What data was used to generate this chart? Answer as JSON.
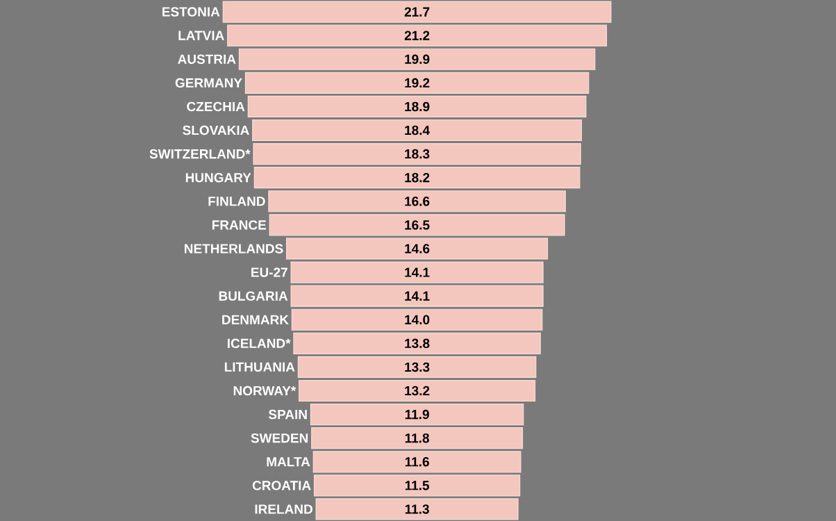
{
  "chart_data": {
    "type": "other",
    "categories": [
      "ESTONIA",
      "LATVIA",
      "AUSTRIA",
      "GERMANY",
      "CZECHIA",
      "SLOVAKIA",
      "SWITZERLAND*",
      "HUNGARY",
      "FINLAND",
      "FRANCE",
      "NETHERLANDS",
      "EU-27",
      "BULGARIA",
      "DENMARK",
      "ICELAND*",
      "LITHUANIA",
      "NORWAY*",
      "SPAIN",
      "SWEDEN",
      "MALTA",
      "CROATIA",
      "IRELAND"
    ],
    "values": [
      21.7,
      21.2,
      19.9,
      19.2,
      18.9,
      18.4,
      18.3,
      18.2,
      16.6,
      16.5,
      14.6,
      14.1,
      14.1,
      14.0,
      13.8,
      13.3,
      13.2,
      11.9,
      11.8,
      11.6,
      11.5,
      11.3
    ],
    "color": "#f4c7be",
    "value_labels": [
      "21.7",
      "21.2",
      "19.9",
      "19.2",
      "18.9",
      "18.4",
      "18.3",
      "18.2",
      "16.6",
      "16.5",
      "14.6",
      "14.1",
      "14.1",
      "14.0",
      "13.8",
      "13.3",
      "13.2",
      "11.9",
      "11.8",
      "11.6",
      "11.5",
      "11.3"
    ]
  }
}
